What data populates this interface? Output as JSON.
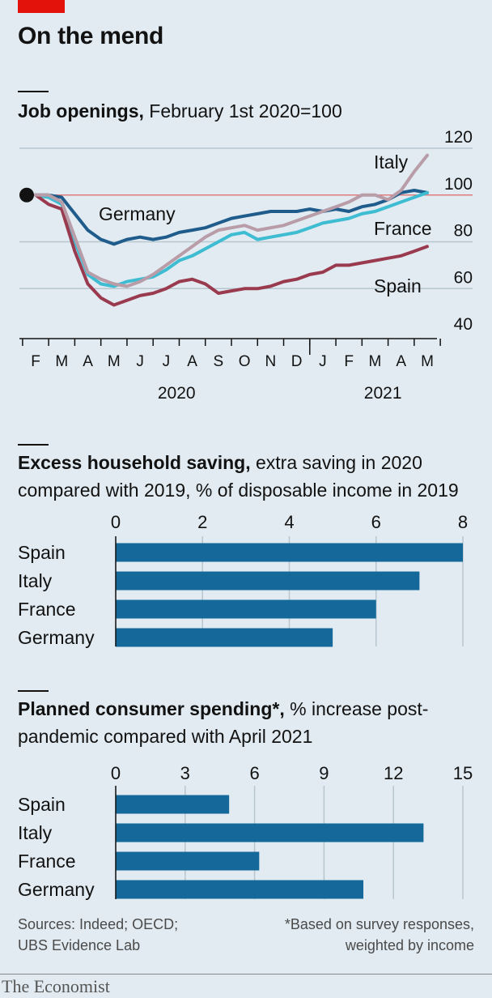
{
  "header": {
    "title": "On the mend"
  },
  "sections": {
    "jobs": {
      "title_bold": "Job openings,",
      "title_rest": " February 1st 2020=100"
    },
    "saving": {
      "title_bold": "Excess household saving,",
      "title_rest": " extra saving in 2020 compared with 2019, % of disposable income in 2019"
    },
    "spending": {
      "title_bold": "Planned consumer spending*,",
      "title_rest": " % increase post-pandemic compared with April 2021"
    }
  },
  "colors": {
    "germany": "#1f5c8b",
    "france": "#3ebcd2",
    "spain": "#9a3a4e",
    "italy": "#b89ca8",
    "bar": "#15689a",
    "reference": "#e07b7b",
    "grid": "#b7c6cf"
  },
  "chart_data": [
    {
      "type": "line",
      "y_ticks": [
        40,
        60,
        80,
        100,
        120
      ],
      "ylim": [
        40,
        120
      ],
      "reference_value": 100,
      "x_ticks": [
        "F",
        "M",
        "A",
        "M",
        "J",
        "J",
        "A",
        "S",
        "O",
        "N",
        "D",
        "J",
        "F",
        "M",
        "A",
        "M"
      ],
      "x_groups": [
        "2020",
        "2021"
      ],
      "series": [
        {
          "name": "Germany",
          "key": "germany",
          "x": [
            0,
            0.5,
            1.0,
            1.5,
            2.0,
            2.5,
            3.0,
            3.5,
            4.0,
            4.5,
            5.0,
            5.5,
            6.0,
            6.5,
            7.0,
            7.5,
            8.0,
            8.5,
            9.0,
            9.5,
            10.0,
            10.5,
            11.0,
            11.5,
            12.0,
            12.5,
            13.0,
            13.5,
            14.0,
            14.5,
            15.0
          ],
          "values": [
            100,
            100,
            99,
            92,
            85,
            81,
            79,
            81,
            82,
            81,
            82,
            84,
            85,
            86,
            88,
            90,
            91,
            92,
            93,
            93,
            93,
            94,
            93,
            94,
            93,
            95,
            96,
            98,
            101,
            102,
            101
          ]
        },
        {
          "name": "France",
          "key": "france",
          "x": [
            0,
            0.5,
            1.0,
            1.5,
            2.0,
            2.5,
            3.0,
            3.5,
            4.0,
            4.5,
            5.0,
            5.5,
            6.0,
            6.5,
            7.0,
            7.5,
            8.0,
            8.5,
            9.0,
            9.5,
            10.0,
            10.5,
            11.0,
            11.5,
            12.0,
            12.5,
            13.0,
            13.5,
            14.0,
            14.5,
            15.0
          ],
          "values": [
            100,
            99,
            96,
            80,
            66,
            62,
            61,
            63,
            64,
            65,
            68,
            72,
            74,
            77,
            80,
            83,
            84,
            81,
            82,
            83,
            84,
            86,
            88,
            89,
            90,
            92,
            93,
            95,
            97,
            99,
            101
          ]
        },
        {
          "name": "Spain",
          "key": "spain",
          "x": [
            0,
            0.5,
            1.0,
            1.5,
            2.0,
            2.5,
            3.0,
            3.5,
            4.0,
            4.5,
            5.0,
            5.5,
            6.0,
            6.5,
            7.0,
            7.5,
            8.0,
            8.5,
            9.0,
            9.5,
            10.0,
            10.5,
            11.0,
            11.5,
            12.0,
            12.5,
            13.0,
            13.5,
            14.0,
            14.5,
            15.0
          ],
          "values": [
            100,
            96,
            94,
            76,
            62,
            56,
            53,
            55,
            57,
            58,
            60,
            63,
            64,
            62,
            58,
            59,
            60,
            60,
            61,
            63,
            64,
            66,
            67,
            70,
            70,
            71,
            72,
            73,
            74,
            76,
            78
          ]
        },
        {
          "name": "Italy",
          "key": "italy",
          "x": [
            0,
            0.5,
            1.0,
            1.5,
            2.0,
            2.5,
            3.0,
            3.5,
            4.0,
            4.5,
            5.0,
            5.5,
            6.0,
            6.5,
            7.0,
            7.5,
            8.0,
            8.5,
            9.0,
            9.5,
            10.0,
            10.5,
            11.0,
            11.5,
            12.0,
            12.5,
            13.0,
            13.5,
            14.0,
            14.5,
            15.0
          ],
          "values": [
            100,
            100,
            97,
            82,
            67,
            64,
            62,
            61,
            63,
            66,
            70,
            74,
            78,
            82,
            85,
            86,
            87,
            85,
            86,
            87,
            89,
            91,
            93,
            95,
            97,
            100,
            100,
            98,
            102,
            110,
            117
          ]
        }
      ]
    },
    {
      "type": "bar",
      "categories": [
        "Spain",
        "Italy",
        "France",
        "Germany"
      ],
      "values": [
        8.0,
        7.0,
        6.0,
        5.0
      ],
      "x_ticks": [
        0,
        2,
        4,
        6,
        8
      ],
      "xlim": [
        0,
        8
      ]
    },
    {
      "type": "bar",
      "categories": [
        "Spain",
        "Italy",
        "France",
        "Germany"
      ],
      "values": [
        4.9,
        13.3,
        6.2,
        10.7
      ],
      "x_ticks": [
        0,
        3,
        6,
        9,
        12,
        15
      ],
      "xlim": [
        0,
        15
      ]
    }
  ],
  "footer": {
    "sources_line1": "Sources: Indeed; OECD;",
    "sources_line2": "UBS Evidence Lab",
    "note_line1": "*Based on survey responses,",
    "note_line2": "weighted by income",
    "brand": "The Economist"
  }
}
